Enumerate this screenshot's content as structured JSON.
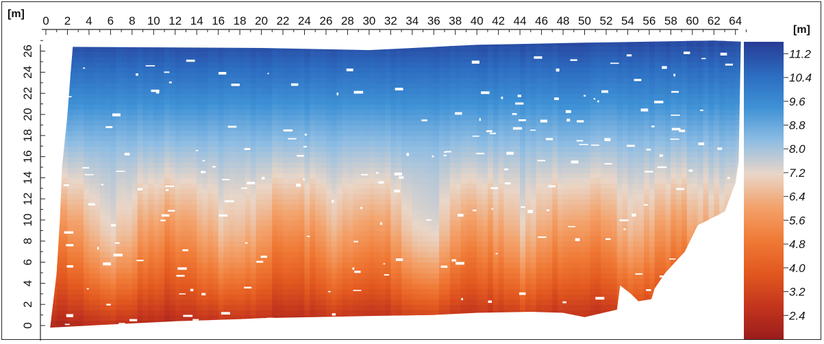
{
  "chart_data": {
    "type": "heatmap",
    "title": "",
    "x_axis": {
      "unit_label": "[m]",
      "range": [
        0,
        65
      ],
      "tick_labels": [
        "0",
        "2",
        "4",
        "6",
        "8",
        "10",
        "12",
        "14",
        "16",
        "18",
        "20",
        "22",
        "24",
        "26",
        "28",
        "30",
        "32",
        "34",
        "36",
        "38",
        "40",
        "42",
        "44",
        "46",
        "48",
        "50",
        "52",
        "54",
        "56",
        "58",
        "60",
        "62",
        "64"
      ]
    },
    "y_axis": {
      "unit_label": "[m]",
      "range": [
        -0.5,
        27
      ],
      "tick_labels": [
        "0",
        "2",
        "4",
        "6",
        "8",
        "10",
        "12",
        "14",
        "16",
        "18",
        "20",
        "22",
        "24",
        "26"
      ]
    },
    "colorbar": {
      "unit_label": "[m]",
      "range": [
        1.6,
        11.6
      ],
      "tick_labels": [
        "11.2",
        "10.4",
        "9.6",
        "8.8",
        "8.0",
        "7.2",
        "6.4",
        "5.6",
        "4.8",
        "4.0",
        "3.2",
        "2.4"
      ],
      "colors": [
        "#9b1c1c",
        "#c4351d",
        "#e2581f",
        "#f07a36",
        "#f3a26b",
        "#e9d6c8",
        "#8fbde3",
        "#3f92d6",
        "#2c6cc0",
        "#283b95"
      ]
    },
    "outline": {
      "top": [
        [
          2.5,
          26.4
        ],
        [
          20,
          26.3
        ],
        [
          30,
          26.1
        ],
        [
          40,
          26.6
        ],
        [
          50,
          26.8
        ],
        [
          62,
          27.0
        ],
        [
          64.5,
          26.9
        ]
      ],
      "right": [
        [
          64.5,
          26.9
        ],
        [
          64.3,
          15.5
        ],
        [
          64,
          13.5
        ],
        [
          63,
          10.8
        ],
        [
          60.5,
          9.5
        ],
        [
          59.3,
          7.0
        ],
        [
          57.5,
          5.0
        ],
        [
          56.5,
          3.5
        ],
        [
          56.2,
          2.5
        ],
        [
          55,
          2.3
        ],
        [
          54.3,
          3.0
        ],
        [
          53.3,
          3.8
        ],
        [
          53,
          1.5
        ],
        [
          50,
          0.8
        ],
        [
          48,
          1.2
        ],
        [
          45,
          1.3
        ],
        [
          40,
          1.2
        ],
        [
          36,
          1.0
        ],
        [
          30,
          0.9
        ],
        [
          20,
          0.7
        ],
        [
          18,
          0.6
        ]
      ],
      "bottom": [
        [
          18,
          0.6
        ],
        [
          12,
          0.4
        ],
        [
          6,
          0.1
        ],
        [
          0.4,
          -0.2
        ]
      ],
      "left": [
        [
          0.4,
          -0.2
        ],
        [
          1.0,
          5.0
        ],
        [
          1.3,
          10.0
        ],
        [
          1.5,
          15.0
        ],
        [
          2.0,
          20.0
        ],
        [
          2.3,
          24.0
        ],
        [
          2.5,
          26.4
        ]
      ]
    },
    "field": {
      "base": "elevation increases with y from about 2.2 at the bottom to about 11.2 at the top",
      "ridges": [
        [
          6,
          1.6
        ],
        [
          17,
          1.4
        ],
        [
          27,
          0.9
        ],
        [
          35,
          1.8
        ],
        [
          44,
          1.3
        ],
        [
          54,
          1.1
        ],
        [
          62,
          0.8
        ]
      ]
    }
  }
}
